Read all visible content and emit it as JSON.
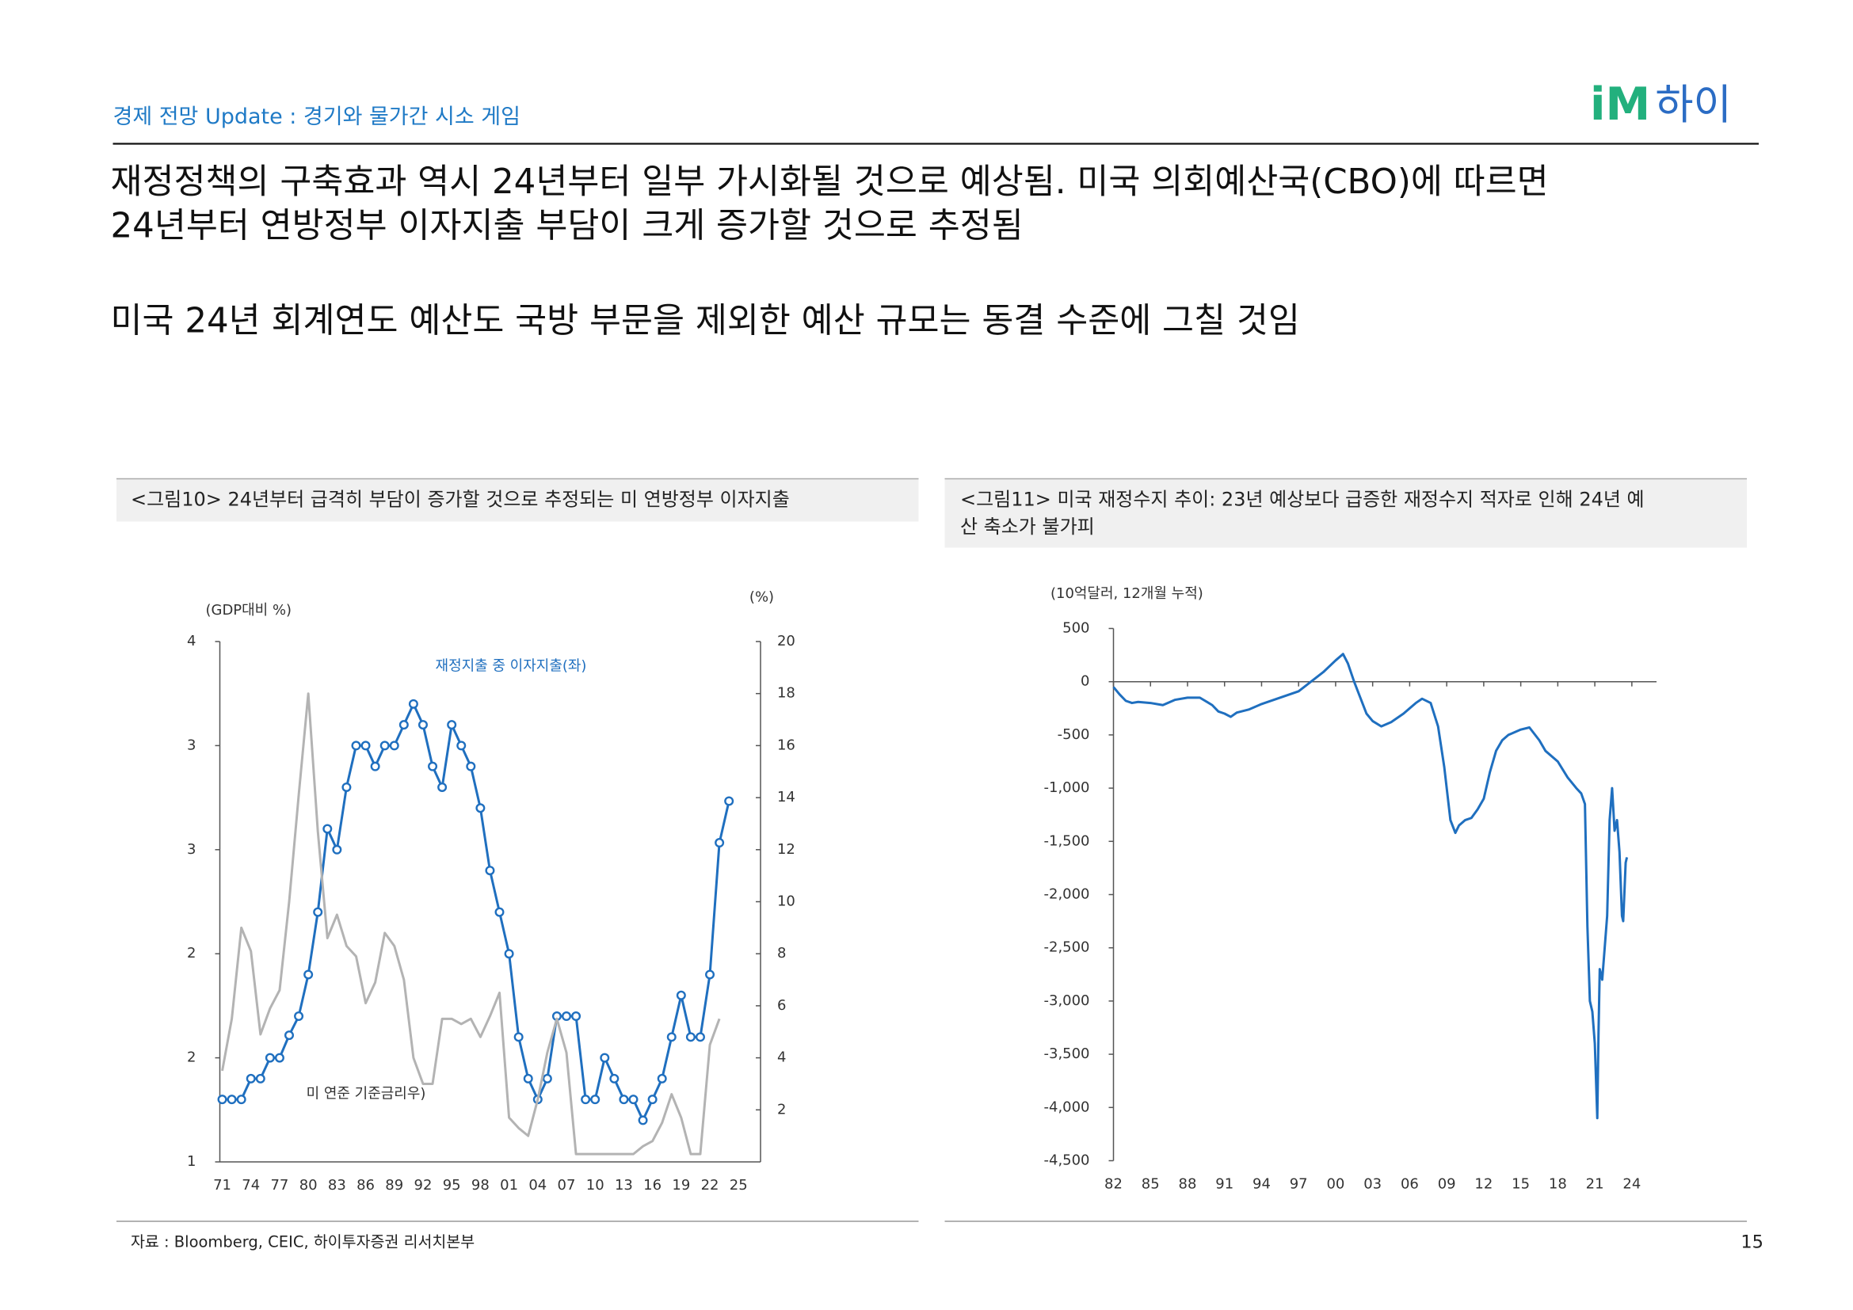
{
  "header": {
    "section": "경제 전망 Update : 경기와 물가간 시소 게임",
    "logo": [
      "iM",
      "하이"
    ]
  },
  "headline": [
    "재정정책의 구축효과 역시 24년부터 일부 가시화될 것으로 예상됨. 미국 의회예산국(CBO)에 따르면",
    "24년부터 연방정부 이자지출 부담이 크게 증가할 것으로 추정됨",
    "미국 24년 회계연도 예산도 국방 부문을 제외한 예산 규모는 동결 수준에 그칠 것임"
  ],
  "chart_data": [
    {
      "type": "line",
      "title": [
        "<그림10> 24년부터 급격히 부담이 증가할 것으로 추정되는 미 연방정부 이자지출"
      ],
      "y_label": "(GDP대비 %)",
      "y2_label": "(%)",
      "x": [
        1971,
        1972,
        1973,
        1974,
        1975,
        1976,
        1977,
        1978,
        1979,
        1980,
        1981,
        1982,
        1983,
        1984,
        1985,
        1986,
        1987,
        1988,
        1989,
        1990,
        1991,
        1992,
        1993,
        1994,
        1995,
        1996,
        1997,
        1998,
        1999,
        2000,
        2001,
        2002,
        2003,
        2004,
        2005,
        2006,
        2007,
        2008,
        2009,
        2010,
        2011,
        2012,
        2013,
        2014,
        2015,
        2016,
        2017,
        2018,
        2019,
        2020,
        2021,
        2022,
        2023,
        2024
      ],
      "xlim": [
        1970.75,
        2027.3
      ],
      "xticks": [
        {
          "value": 1971,
          "label": "71"
        },
        {
          "value": 1974,
          "label": "74"
        },
        {
          "value": 1977,
          "label": "77"
        },
        {
          "value": 1980,
          "label": "80"
        },
        {
          "value": 1983,
          "label": "83"
        },
        {
          "value": 1986,
          "label": "86"
        },
        {
          "value": 1989,
          "label": "89"
        },
        {
          "value": 1992,
          "label": "92"
        },
        {
          "value": 1995,
          "label": "95"
        },
        {
          "value": 1998,
          "label": "98"
        },
        {
          "value": 2001,
          "label": "01"
        },
        {
          "value": 2004,
          "label": "04"
        },
        {
          "value": 2007,
          "label": "07"
        },
        {
          "value": 2010,
          "label": "10"
        },
        {
          "value": 2013,
          "label": "13"
        },
        {
          "value": 2016,
          "label": "16"
        },
        {
          "value": 2019,
          "label": "19"
        },
        {
          "value": 2022,
          "label": "22"
        },
        {
          "value": 2025,
          "label": "25"
        }
      ],
      "ylim": [
        1,
        4
      ],
      "yticks": [
        1,
        {
          "value": 1.6,
          "label": "2"
        },
        {
          "value": 2.2,
          "label": "2"
        },
        {
          "value": 2.8,
          "label": "3"
        },
        {
          "value": 3.4,
          "label": "3"
        },
        4
      ],
      "y2lim": [
        0,
        20
      ],
      "y2ticks": [
        2,
        4,
        6,
        8,
        10,
        12,
        14,
        16,
        18,
        20
      ],
      "series": [
        {
          "name": "재정지출 중 이자지출(좌)",
          "color": "#1f6fbf",
          "markers": true,
          "values": [
            1.36,
            1.36,
            1.36,
            1.48,
            1.48,
            1.6,
            1.6,
            1.73,
            1.84,
            2.08,
            2.44,
            2.92,
            2.8,
            3.16,
            3.4,
            3.4,
            3.28,
            3.4,
            3.4,
            3.52,
            3.64,
            3.52,
            3.28,
            3.16,
            3.52,
            3.4,
            3.28,
            3.04,
            2.68,
            2.44,
            2.2,
            1.72,
            1.48,
            1.36,
            1.48,
            1.84,
            1.84,
            1.84,
            1.36,
            1.36,
            1.6,
            1.48,
            1.36,
            1.36,
            1.24,
            1.36,
            1.48,
            1.72,
            1.96,
            1.72,
            1.72,
            2.08,
            2.84,
            3.08
          ]
        },
        {
          "name": "미 연준 기준금리우)",
          "color": "#b3b3b3",
          "axis": "y2",
          "values": [
            3.5,
            5.5,
            9.0,
            8.1,
            4.9,
            5.9,
            6.6,
            10.0,
            14.1,
            18.0,
            12.7,
            8.6,
            9.5,
            8.3,
            7.9,
            6.1,
            6.9,
            8.8,
            8.3,
            7.0,
            4.0,
            3.0,
            3.0,
            5.5,
            5.5,
            5.3,
            5.5,
            4.8,
            5.6,
            6.5,
            1.7,
            1.3,
            1.0,
            2.4,
            4.2,
            5.5,
            4.2,
            0.3,
            0.3,
            0.3,
            0.3,
            0.3,
            0.3,
            0.3,
            0.6,
            0.8,
            1.5,
            2.6,
            1.7,
            0.3,
            0.3,
            4.5,
            5.5,
            null
          ]
        }
      ]
    },
    {
      "type": "line",
      "title": [
        "<그림11> 미국 재정수지 추이: 23년 예상보다 급증한 재정수지 적자로 인해  24년 예",
        "산 축소가 불가피"
      ],
      "y_label": "(10억달러, 12개월 누적)",
      "x": [
        1982.0,
        1982.5,
        1983.0,
        1983.5,
        1984.0,
        1985.0,
        1986.0,
        1987.0,
        1988.0,
        1989.0,
        1990.0,
        1990.5,
        1991.0,
        1991.5,
        1992.0,
        1993.0,
        1994.0,
        1995.0,
        1996.0,
        1997.0,
        1998.0,
        1999.0,
        2000.0,
        2000.6,
        2001.0,
        2001.5,
        2002.0,
        2002.5,
        2003.0,
        2003.7,
        2004.5,
        2005.5,
        2006.5,
        2007.0,
        2007.7,
        2008.3,
        2008.8,
        2009.3,
        2009.7,
        2010.0,
        2010.5,
        2011.0,
        2011.5,
        2012.0,
        2012.5,
        2013.0,
        2013.5,
        2014.0,
        2015.0,
        2015.7,
        2016.5,
        2017.0,
        2018.0,
        2018.8,
        2019.5,
        2019.9,
        2020.2,
        2020.4,
        2020.6,
        2020.8,
        2021.0,
        2021.2,
        2021.3,
        2021.4,
        2021.6,
        2021.8,
        2022.0,
        2022.2,
        2022.4,
        2022.6,
        2022.8,
        2023.0,
        2023.2,
        2023.3,
        2023.5,
        2023.6
      ],
      "xlim": [
        1982,
        2026
      ],
      "xticks": [
        {
          "value": 1982,
          "label": "82"
        },
        {
          "value": 1985,
          "label": "85"
        },
        {
          "value": 1988,
          "label": "88"
        },
        {
          "value": 1991,
          "label": "91"
        },
        {
          "value": 1994,
          "label": "94"
        },
        {
          "value": 1997,
          "label": "97"
        },
        {
          "value": 2000,
          "label": "00"
        },
        {
          "value": 2003,
          "label": "03"
        },
        {
          "value": 2006,
          "label": "06"
        },
        {
          "value": 2009,
          "label": "09"
        },
        {
          "value": 2012,
          "label": "12"
        },
        {
          "value": 2015,
          "label": "15"
        },
        {
          "value": 2018,
          "label": "18"
        },
        {
          "value": 2021,
          "label": "21"
        },
        {
          "value": 2024,
          "label": "24"
        }
      ],
      "ylim": [
        -4500,
        500
      ],
      "yticks": [
        500,
        0,
        -500,
        {
          "value": -1000,
          "label": "-1,000"
        },
        {
          "value": -1500,
          "label": "-1,500"
        },
        {
          "value": -2000,
          "label": "-2,000"
        },
        {
          "value": -2500,
          "label": "-2,500"
        },
        {
          "value": -3000,
          "label": "-3,000"
        },
        {
          "value": -3500,
          "label": "-3,500"
        },
        {
          "value": -4000,
          "label": "-4,000"
        },
        {
          "value": -4500,
          "label": "-4,500"
        }
      ],
      "series": [
        {
          "color": "#1f6fbf",
          "values": [
            -50,
            -120,
            -180,
            -200,
            -190,
            -200,
            -220,
            -170,
            -150,
            -150,
            -220,
            -280,
            -300,
            -330,
            -290,
            -260,
            -210,
            -170,
            -130,
            -90,
            0,
            90,
            200,
            260,
            170,
            0,
            -150,
            -300,
            -370,
            -420,
            -380,
            -300,
            -200,
            -160,
            -200,
            -420,
            -800,
            -1300,
            -1420,
            -1350,
            -1300,
            -1280,
            -1200,
            -1100,
            -850,
            -650,
            -550,
            -500,
            -450,
            -430,
            -550,
            -650,
            -750,
            -900,
            -1000,
            -1050,
            -1150,
            -2300,
            -3000,
            -3100,
            -3400,
            -4100,
            -3300,
            -2700,
            -2800,
            -2500,
            -2200,
            -1300,
            -1000,
            -1400,
            -1300,
            -1600,
            -2200,
            -2250,
            -1700,
            -1650
          ]
        }
      ]
    }
  ],
  "footer": {
    "source": "자료 : Bloomberg, CEIC, 하이투자증권 리서치본부",
    "page": "15"
  }
}
